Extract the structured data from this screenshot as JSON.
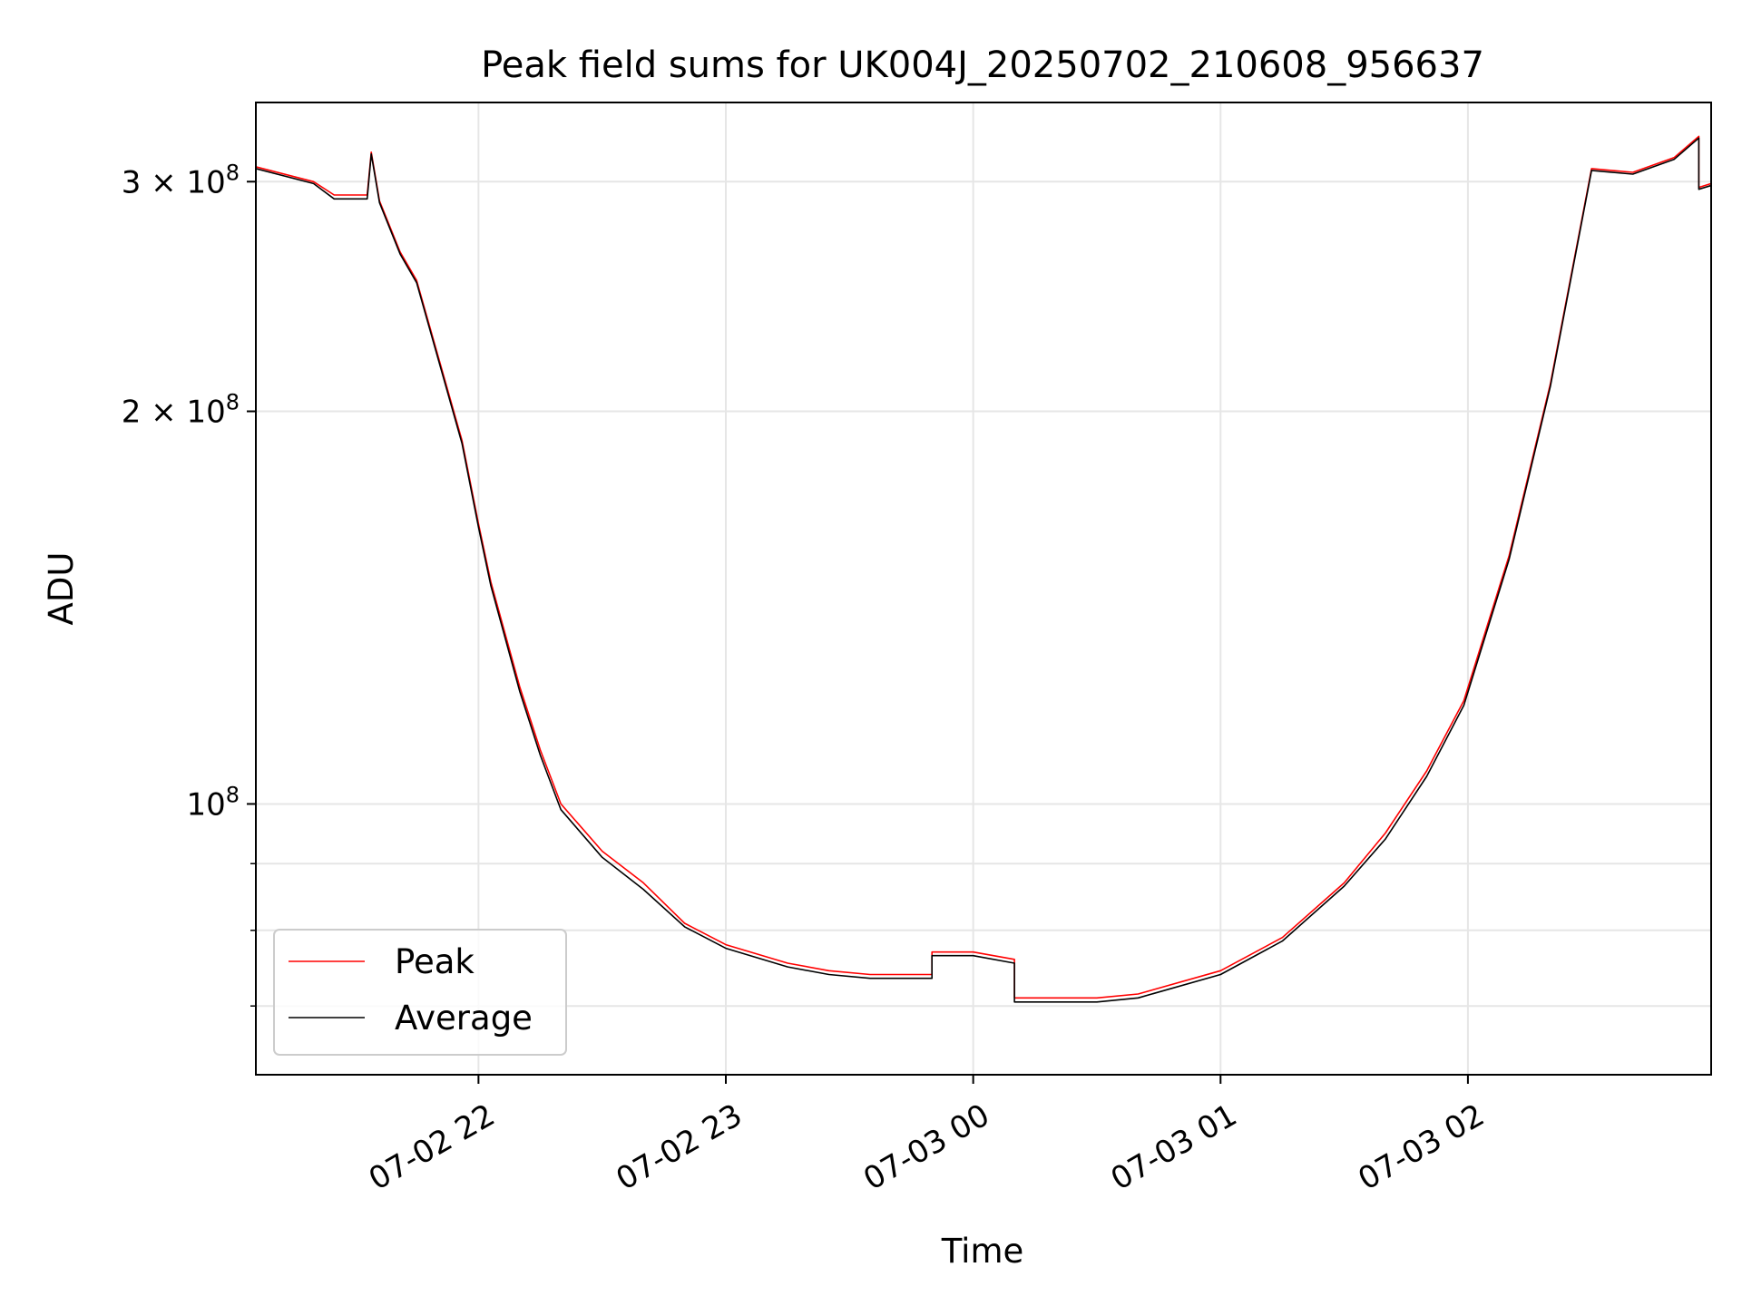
{
  "chart_data": {
    "type": "line",
    "title": "Peak field sums for UK004J_20250702_210608_956637",
    "xlabel": "Time",
    "ylabel": "ADU",
    "yscale": "log",
    "xlim": [
      "2025-07-02 21:06",
      "2025-07-03 02:59"
    ],
    "ylim": [
      62000000,
      345000000
    ],
    "grid": true,
    "legend_position": "lower-left",
    "x_ticks": [
      "07-02 22",
      "07-02 23",
      "07-03 00",
      "07-03 01",
      "07-03 02"
    ],
    "y_ticks": [
      {
        "value": 300000000,
        "mantissa": "3",
        "exponent": "8"
      },
      {
        "value": 200000000,
        "mantissa": "2",
        "exponent": "8"
      },
      {
        "value": 100000000,
        "mantissa": "",
        "exponent": "8"
      }
    ],
    "series": [
      {
        "name": "Peak",
        "color": "#ff0000",
        "x": [
          "2025-07-02 21:06",
          "2025-07-02 21:20",
          "2025-07-02 21:25",
          "2025-07-02 21:33",
          "2025-07-02 21:33",
          "2025-07-02 21:34",
          "2025-07-02 21:36",
          "2025-07-02 21:41",
          "2025-07-02 21:45",
          "2025-07-02 21:56",
          "2025-07-02 22:00",
          "2025-07-02 22:03",
          "2025-07-02 22:10",
          "2025-07-02 22:15",
          "2025-07-02 22:20",
          "2025-07-02 22:30",
          "2025-07-02 22:40",
          "2025-07-02 22:50",
          "2025-07-02 23:00",
          "2025-07-02 23:15",
          "2025-07-02 23:25",
          "2025-07-02 23:35",
          "2025-07-02 23:50",
          "2025-07-02 23:50",
          "2025-07-03 00:00",
          "2025-07-03 00:10",
          "2025-07-03 00:10",
          "2025-07-03 00:30",
          "2025-07-03 00:40",
          "2025-07-03 01:00",
          "2025-07-03 01:15",
          "2025-07-03 01:30",
          "2025-07-03 01:40",
          "2025-07-03 01:50",
          "2025-07-03 01:59",
          "2025-07-03 02:10",
          "2025-07-03 02:20",
          "2025-07-03 02:30",
          "2025-07-03 02:40",
          "2025-07-03 02:50",
          "2025-07-03 02:56",
          "2025-07-03 02:56",
          "2025-07-03 02:59"
        ],
        "y": [
          308000000,
          300000000,
          293000000,
          293000000,
          293000000,
          316000000,
          290000000,
          265000000,
          252000000,
          190000000,
          164000000,
          148000000,
          123000000,
          110000000,
          100000000,
          92000000,
          87000000,
          81000000,
          78000000,
          75500000,
          74500000,
          74000000,
          74000000,
          77000000,
          77000000,
          76000000,
          71000000,
          71000000,
          71500000,
          74500000,
          79000000,
          87000000,
          95000000,
          106000000,
          120000000,
          155000000,
          210000000,
          307000000,
          305000000,
          313000000,
          325000000,
          297000000,
          299000000
        ]
      },
      {
        "name": "Average",
        "color": "#000000",
        "x": [
          "2025-07-02 21:06",
          "2025-07-02 21:20",
          "2025-07-02 21:25",
          "2025-07-02 21:33",
          "2025-07-02 21:33",
          "2025-07-02 21:34",
          "2025-07-02 21:36",
          "2025-07-02 21:41",
          "2025-07-02 21:45",
          "2025-07-02 21:56",
          "2025-07-02 22:00",
          "2025-07-02 22:03",
          "2025-07-02 22:10",
          "2025-07-02 22:15",
          "2025-07-02 22:20",
          "2025-07-02 22:30",
          "2025-07-02 22:40",
          "2025-07-02 22:50",
          "2025-07-02 23:00",
          "2025-07-02 23:15",
          "2025-07-02 23:25",
          "2025-07-02 23:35",
          "2025-07-02 23:50",
          "2025-07-02 23:50",
          "2025-07-03 00:00",
          "2025-07-03 00:10",
          "2025-07-03 00:10",
          "2025-07-03 00:30",
          "2025-07-03 00:40",
          "2025-07-03 01:00",
          "2025-07-03 01:15",
          "2025-07-03 01:30",
          "2025-07-03 01:40",
          "2025-07-03 01:50",
          "2025-07-03 01:59",
          "2025-07-03 02:10",
          "2025-07-03 02:20",
          "2025-07-03 02:30",
          "2025-07-03 02:40",
          "2025-07-03 02:50",
          "2025-07-03 02:56",
          "2025-07-03 02:56",
          "2025-07-03 02:59"
        ],
        "y": [
          307000000,
          299000000,
          291000000,
          291000000,
          291000000,
          315000000,
          289000000,
          264000000,
          251000000,
          189000000,
          163000000,
          147000000,
          122000000,
          109000000,
          99000000,
          91000000,
          86000000,
          80500000,
          77500000,
          75000000,
          74000000,
          73500000,
          73500000,
          76500000,
          76500000,
          75500000,
          70500000,
          70500000,
          71000000,
          74000000,
          78500000,
          86500000,
          94000000,
          105000000,
          119000000,
          154000000,
          209000000,
          306000000,
          304000000,
          312000000,
          324000000,
          296000000,
          298000000
        ]
      }
    ]
  }
}
